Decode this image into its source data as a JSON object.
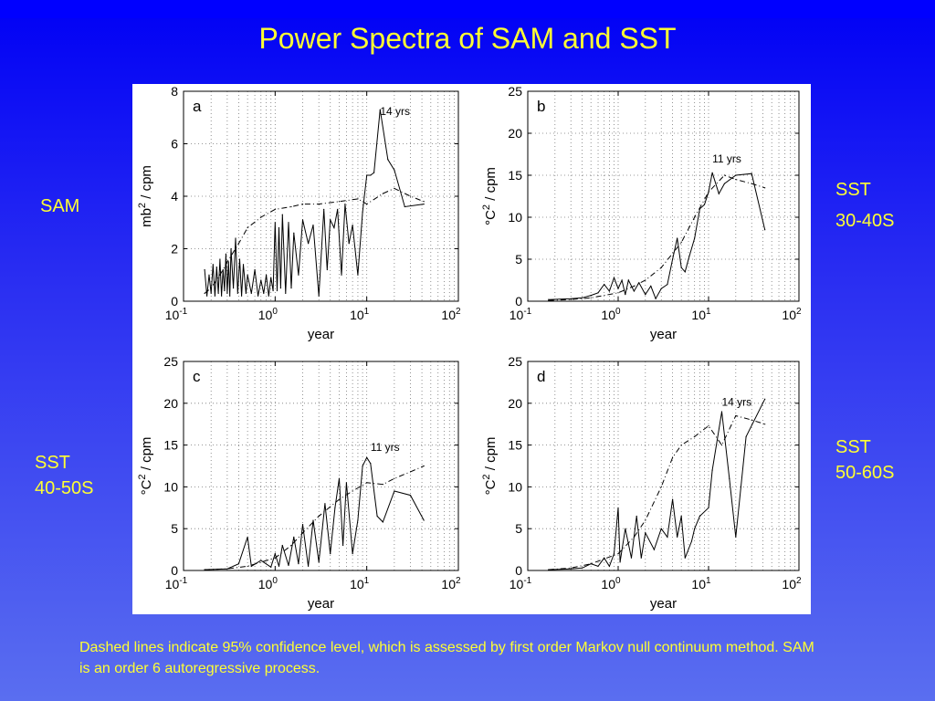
{
  "slide": {
    "title": "Power Spectra of SAM and SST",
    "caption": "Dashed lines indicate 95% confidence level, which is assessed by first order Markov null continuum method. SAM is an order 6 autoregressive process.",
    "labels": {
      "sam": "SAM",
      "sst_30_40_line1": "SST",
      "sst_30_40_line2": "30-40S",
      "sst_40_50_line1": "SST",
      "sst_40_50_line2": "40-50S",
      "sst_50_60_line1": "SST",
      "sst_50_60_line2": "50-60S"
    },
    "colors": {
      "background": "#2a2ef2",
      "text": "#ffff33",
      "figure_bg": "#ffffff"
    }
  },
  "chart_data": [
    {
      "type": "line",
      "panel": "a",
      "xlabel": "year",
      "ylabel": "mb² / cpm",
      "xscale": "log",
      "xlim": [
        0.1,
        100
      ],
      "ylim": [
        0,
        8
      ],
      "yticks": [
        0,
        2,
        4,
        6,
        8
      ],
      "grid": true,
      "annotation": {
        "text": "14 yrs",
        "x": 14,
        "y": 7.1
      },
      "series": [
        {
          "style": "solid",
          "points": [
            [
              0.17,
              1.2
            ],
            [
              0.18,
              0.2
            ],
            [
              0.19,
              1.0
            ],
            [
              0.2,
              0.3
            ],
            [
              0.21,
              1.4
            ],
            [
              0.22,
              0.2
            ],
            [
              0.23,
              1.3
            ],
            [
              0.24,
              0.3
            ],
            [
              0.25,
              1.6
            ],
            [
              0.26,
              0.2
            ],
            [
              0.27,
              1.2
            ],
            [
              0.28,
              0.4
            ],
            [
              0.29,
              1.8
            ],
            [
              0.3,
              0.3
            ],
            [
              0.31,
              1.5
            ],
            [
              0.32,
              0.2
            ],
            [
              0.33,
              2.0
            ],
            [
              0.35,
              0.5
            ],
            [
              0.37,
              2.4
            ],
            [
              0.39,
              0.3
            ],
            [
              0.41,
              1.6
            ],
            [
              0.43,
              0.2
            ],
            [
              0.45,
              1.4
            ],
            [
              0.48,
              0.3
            ],
            [
              0.5,
              1.0
            ],
            [
              0.55,
              0.3
            ],
            [
              0.6,
              1.2
            ],
            [
              0.65,
              0.2
            ],
            [
              0.7,
              0.8
            ],
            [
              0.75,
              0.3
            ],
            [
              0.8,
              1.0
            ],
            [
              0.85,
              0.2
            ],
            [
              0.9,
              0.9
            ],
            [
              0.95,
              0.4
            ],
            [
              1.0,
              3.0
            ],
            [
              1.05,
              0.4
            ],
            [
              1.1,
              2.8
            ],
            [
              1.15,
              0.5
            ],
            [
              1.2,
              3.3
            ],
            [
              1.3,
              0.3
            ],
            [
              1.4,
              3.0
            ],
            [
              1.5,
              0.5
            ],
            [
              1.6,
              2.6
            ],
            [
              1.8,
              1.0
            ],
            [
              2.0,
              3.1
            ],
            [
              2.3,
              2.2
            ],
            [
              2.6,
              2.9
            ],
            [
              3.0,
              0.2
            ],
            [
              3.4,
              3.5
            ],
            [
              3.7,
              1.2
            ],
            [
              4.0,
              3.1
            ],
            [
              4.4,
              2.8
            ],
            [
              4.8,
              3.5
            ],
            [
              5.3,
              1.0
            ],
            [
              5.8,
              3.7
            ],
            [
              6.4,
              2.2
            ],
            [
              7.0,
              2.9
            ],
            [
              8.0,
              1.0
            ],
            [
              9.0,
              3.4
            ],
            [
              10.0,
              4.8
            ],
            [
              11.0,
              4.8
            ],
            [
              12.0,
              4.9
            ],
            [
              14.0,
              7.3
            ],
            [
              17.0,
              5.4
            ],
            [
              20.0,
              5.0
            ],
            [
              26.0,
              3.6
            ],
            [
              42.0,
              3.7
            ]
          ]
        },
        {
          "style": "dashed",
          "points": [
            [
              0.17,
              0.3
            ],
            [
              0.2,
              0.5
            ],
            [
              0.25,
              1.0
            ],
            [
              0.3,
              1.5
            ],
            [
              0.4,
              2.2
            ],
            [
              0.5,
              2.8
            ],
            [
              0.7,
              3.2
            ],
            [
              1.0,
              3.5
            ],
            [
              1.5,
              3.6
            ],
            [
              2.0,
              3.7
            ],
            [
              3.0,
              3.7
            ],
            [
              5.0,
              3.8
            ],
            [
              8.0,
              3.9
            ],
            [
              10.0,
              3.7
            ],
            [
              15.0,
              4.1
            ],
            [
              20.0,
              4.3
            ],
            [
              30.0,
              4.0
            ],
            [
              42.0,
              3.8
            ]
          ]
        }
      ]
    },
    {
      "type": "line",
      "panel": "b",
      "xlabel": "year",
      "ylabel": "°C² / cpm",
      "xscale": "log",
      "xlim": [
        0.1,
        100
      ],
      "ylim": [
        0,
        25
      ],
      "yticks": [
        0,
        5,
        10,
        15,
        20,
        25
      ],
      "grid": true,
      "annotation": {
        "text": "11 yrs",
        "x": 11,
        "y": 16.5
      },
      "series": [
        {
          "style": "solid",
          "points": [
            [
              0.17,
              0.2
            ],
            [
              0.3,
              0.3
            ],
            [
              0.4,
              0.4
            ],
            [
              0.5,
              0.7
            ],
            [
              0.6,
              1.0
            ],
            [
              0.7,
              2.0
            ],
            [
              0.8,
              1.2
            ],
            [
              0.9,
              2.8
            ],
            [
              1.0,
              1.5
            ],
            [
              1.1,
              2.5
            ],
            [
              1.2,
              0.8
            ],
            [
              1.3,
              2.5
            ],
            [
              1.5,
              1.2
            ],
            [
              1.7,
              2.2
            ],
            [
              2.0,
              0.8
            ],
            [
              2.3,
              1.8
            ],
            [
              2.6,
              0.3
            ],
            [
              3.0,
              1.5
            ],
            [
              3.5,
              2.0
            ],
            [
              4.0,
              5.0
            ],
            [
              4.5,
              7.5
            ],
            [
              5.0,
              4.0
            ],
            [
              5.5,
              3.5
            ],
            [
              6.0,
              5.0
            ],
            [
              7.0,
              7.5
            ],
            [
              8.0,
              11.0
            ],
            [
              9.0,
              11.5
            ],
            [
              10.0,
              13.0
            ],
            [
              11.0,
              15.3
            ],
            [
              13.0,
              12.8
            ],
            [
              15.0,
              14.0
            ],
            [
              20.0,
              15.0
            ],
            [
              30.0,
              15.2
            ],
            [
              42.0,
              8.5
            ]
          ]
        },
        {
          "style": "dashed",
          "points": [
            [
              0.17,
              0.1
            ],
            [
              0.3,
              0.2
            ],
            [
              0.5,
              0.4
            ],
            [
              1.0,
              1.0
            ],
            [
              1.5,
              1.8
            ],
            [
              2.0,
              2.5
            ],
            [
              3.0,
              4.0
            ],
            [
              5.0,
              7.0
            ],
            [
              7.0,
              10.0
            ],
            [
              10.0,
              13.0
            ],
            [
              15.0,
              15.0
            ],
            [
              20.0,
              14.5
            ],
            [
              30.0,
              14.0
            ],
            [
              42.0,
              13.5
            ]
          ]
        }
      ]
    },
    {
      "type": "line",
      "panel": "c",
      "xlabel": "year",
      "ylabel": "°C² / cpm",
      "xscale": "log",
      "xlim": [
        0.1,
        100
      ],
      "ylim": [
        0,
        25
      ],
      "yticks": [
        0,
        5,
        10,
        15,
        20,
        25
      ],
      "grid": true,
      "annotation": {
        "text": "11 yrs",
        "x": 11,
        "y": 14.3
      },
      "series": [
        {
          "style": "solid",
          "points": [
            [
              0.17,
              0.1
            ],
            [
              0.3,
              0.2
            ],
            [
              0.4,
              0.8
            ],
            [
              0.5,
              4.0
            ],
            [
              0.55,
              0.5
            ],
            [
              0.7,
              1.2
            ],
            [
              0.9,
              0.4
            ],
            [
              1.0,
              2.0
            ],
            [
              1.1,
              0.5
            ],
            [
              1.2,
              3.0
            ],
            [
              1.4,
              0.6
            ],
            [
              1.6,
              4.0
            ],
            [
              1.8,
              0.8
            ],
            [
              2.0,
              5.5
            ],
            [
              2.3,
              0.5
            ],
            [
              2.6,
              6.0
            ],
            [
              3.0,
              1.0
            ],
            [
              3.5,
              8.0
            ],
            [
              4.0,
              2.0
            ],
            [
              4.5,
              7.5
            ],
            [
              5.0,
              11.0
            ],
            [
              5.5,
              3.0
            ],
            [
              6.0,
              10.5
            ],
            [
              7.0,
              2.0
            ],
            [
              8.0,
              6.0
            ],
            [
              9.0,
              12.5
            ],
            [
              10.0,
              13.5
            ],
            [
              11.0,
              12.8
            ],
            [
              13.0,
              6.5
            ],
            [
              15.0,
              5.8
            ],
            [
              20.0,
              9.5
            ],
            [
              30.0,
              9.0
            ],
            [
              42.0,
              6.0
            ]
          ]
        },
        {
          "style": "dashed",
          "points": [
            [
              0.17,
              0.1
            ],
            [
              0.3,
              0.2
            ],
            [
              0.5,
              0.5
            ],
            [
              1.0,
              1.5
            ],
            [
              1.5,
              3.0
            ],
            [
              2.0,
              4.5
            ],
            [
              3.0,
              6.5
            ],
            [
              5.0,
              8.5
            ],
            [
              7.0,
              9.5
            ],
            [
              10.0,
              10.5
            ],
            [
              15.0,
              10.3
            ],
            [
              20.0,
              11.0
            ],
            [
              30.0,
              11.8
            ],
            [
              42.0,
              12.5
            ]
          ]
        }
      ]
    },
    {
      "type": "line",
      "panel": "d",
      "xlabel": "year",
      "ylabel": "°C² / cpm",
      "xscale": "log",
      "xlim": [
        0.1,
        100
      ],
      "ylim": [
        0,
        25
      ],
      "yticks": [
        0,
        5,
        10,
        15,
        20,
        25
      ],
      "grid": true,
      "annotation": {
        "text": "14 yrs",
        "x": 14,
        "y": 19.7
      },
      "series": [
        {
          "style": "solid",
          "points": [
            [
              0.17,
              0.1
            ],
            [
              0.3,
              0.2
            ],
            [
              0.4,
              0.3
            ],
            [
              0.5,
              0.8
            ],
            [
              0.6,
              0.5
            ],
            [
              0.7,
              1.5
            ],
            [
              0.8,
              0.5
            ],
            [
              0.9,
              2.0
            ],
            [
              1.0,
              7.5
            ],
            [
              1.05,
              1.0
            ],
            [
              1.2,
              5.0
            ],
            [
              1.4,
              1.5
            ],
            [
              1.6,
              6.5
            ],
            [
              1.8,
              1.5
            ],
            [
              2.0,
              4.5
            ],
            [
              2.5,
              2.5
            ],
            [
              3.0,
              5.0
            ],
            [
              3.5,
              4.0
            ],
            [
              4.0,
              8.5
            ],
            [
              4.5,
              4.0
            ],
            [
              5.0,
              6.5
            ],
            [
              5.5,
              1.5
            ],
            [
              6.5,
              3.5
            ],
            [
              7.0,
              5.0
            ],
            [
              8.0,
              6.5
            ],
            [
              10.0,
              7.5
            ],
            [
              11.0,
              12.0
            ],
            [
              14.0,
              19.0
            ],
            [
              17.0,
              11.0
            ],
            [
              20.0,
              4.0
            ],
            [
              26.0,
              16.0
            ],
            [
              42.0,
              20.5
            ]
          ]
        },
        {
          "style": "dashed",
          "points": [
            [
              0.17,
              0.1
            ],
            [
              0.3,
              0.3
            ],
            [
              0.5,
              0.8
            ],
            [
              1.0,
              2.0
            ],
            [
              1.5,
              4.0
            ],
            [
              2.0,
              6.0
            ],
            [
              3.0,
              10.0
            ],
            [
              4.0,
              13.5
            ],
            [
              5.0,
              15.0
            ],
            [
              7.0,
              16.0
            ],
            [
              10.0,
              17.3
            ],
            [
              14.0,
              15.0
            ],
            [
              20.0,
              18.5
            ],
            [
              30.0,
              18.0
            ],
            [
              42.0,
              17.5
            ]
          ]
        }
      ]
    }
  ]
}
